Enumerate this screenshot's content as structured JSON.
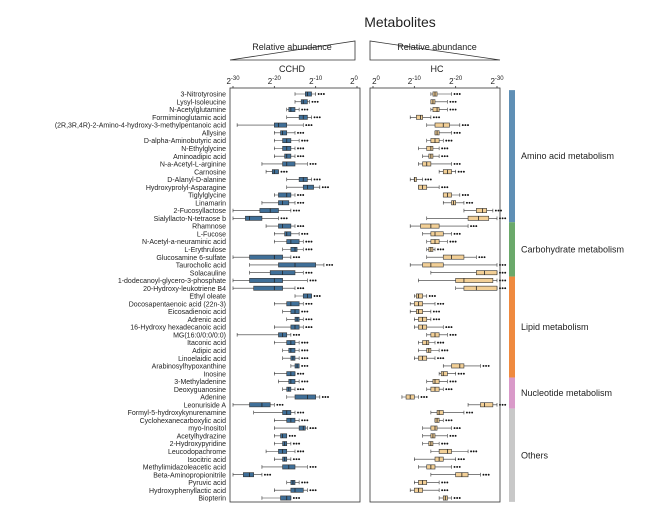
{
  "colors": {
    "cchd": "#3f6f98",
    "hc": "#f2cf96",
    "amino": "#5f8fb5",
    "carb": "#6ba96b",
    "lipid": "#ef8a3f",
    "nucleotide": "#d99ac9",
    "others": "#c8c8c8"
  },
  "chart_data": {
    "type": "boxplot",
    "title": "Metabolites",
    "x_scale": "log2, reversed (2^0 at inner edge, 2^-30 at outer edge)",
    "tick_labels": {
      "left": [
        "2-30",
        "2-20",
        "2-10",
        "2^0"
      ],
      "right": [
        "2^0",
        "2-10",
        "2-20",
        "2-30"
      ]
    },
    "panels": [
      {
        "name": "CCHD",
        "header": "Relative abundance",
        "direction": "reversed"
      },
      {
        "name": "HC",
        "header": "Relative abundance",
        "direction": "normal"
      }
    ],
    "groups": [
      {
        "name": "Amino acid metabolism",
        "start": 0,
        "end": 16
      },
      {
        "name": "Carbohydrate metabolism",
        "start": 17,
        "end": 23
      },
      {
        "name": "Lipid metabolism",
        "start": 24,
        "end": 36
      },
      {
        "name": "Nucleotide metabolism",
        "start": 37,
        "end": 40
      },
      {
        "name": "Others",
        "start": 41,
        "end": 52
      }
    ],
    "metabolites": [
      {
        "name": "3-Nitrotyrosine",
        "cchd": [
          -15,
          -12.5,
          -12,
          -11,
          -10
        ],
        "hc": [
          -14,
          -15.5,
          -15,
          -14.5,
          -19
        ]
      },
      {
        "name": "Lysyl-Isoleucine",
        "cchd": [
          -15,
          -13.5,
          -13,
          -12,
          -11.5
        ],
        "hc": [
          -14,
          -15,
          -14.5,
          -14,
          -18
        ]
      },
      {
        "name": "N-Acetylglutamine",
        "cchd": [
          -17,
          -16.5,
          -16,
          -15,
          -14
        ],
        "hc": [
          -14,
          -16,
          -15.5,
          -14.5,
          -18
        ]
      },
      {
        "name": "Formiminoglutamic acid",
        "cchd": [
          -17,
          -14,
          -13,
          -12,
          -11
        ],
        "hc": [
          -9,
          -12,
          -11.5,
          -10.5,
          -14
        ]
      },
      {
        "name": "(2R,3R,4R)-2-Amino-4-hydroxy-3-methylpentanoic acid",
        "cchd": [
          -29,
          -20,
          -19,
          -17,
          -13
        ],
        "hc": [
          -13,
          -18.5,
          -17,
          -15,
          -21
        ]
      },
      {
        "name": "Allysine",
        "cchd": [
          -20,
          -18.5,
          -18,
          -17,
          -15
        ],
        "hc": [
          -15,
          -16,
          -15.5,
          -15,
          -19
        ]
      },
      {
        "name": "D-alpha-Aminobutyric acid",
        "cchd": [
          -20,
          -18,
          -17,
          -16,
          -14
        ],
        "hc": [
          -13,
          -16,
          -15,
          -14,
          -17
        ]
      },
      {
        "name": "N-Ethylglycine",
        "cchd": [
          -20,
          -18,
          -17,
          -16,
          -15
        ],
        "hc": [
          -11,
          -14.5,
          -14,
          -13,
          -16
        ]
      },
      {
        "name": "Aminoadipic acid",
        "cchd": [
          -20,
          -17.5,
          -17,
          -16,
          -15
        ],
        "hc": [
          -12,
          -14.5,
          -14,
          -13.5,
          -16
        ]
      },
      {
        "name": "N-a-Acetyl-L-arginine",
        "cchd": [
          -23,
          -18,
          -17,
          -15,
          -12
        ],
        "hc": [
          -11,
          -14,
          -13,
          -12,
          -19
        ]
      },
      {
        "name": "Carnosine",
        "cchd": [
          -22,
          -20.5,
          -20,
          -19,
          -19
        ],
        "hc": [
          -16,
          -19,
          -18,
          -17,
          -20
        ]
      },
      {
        "name": "D-Alanyl-D-alanine",
        "cchd": [
          -17,
          -14,
          -13,
          -12,
          -11
        ],
        "hc": [
          -9,
          -10.5,
          -10,
          -10,
          -12
        ]
      },
      {
        "name": "Hydroxyprolyl-Asparagine",
        "cchd": [
          -17,
          -13,
          -12,
          -10.5,
          -9
        ],
        "hc": [
          -11,
          -13,
          -12,
          -11,
          -16
        ]
      },
      {
        "name": "Tiglylglycine",
        "cchd": [
          -20,
          -19,
          -17,
          -16,
          -15
        ],
        "hc": [
          -17,
          -19,
          -18,
          -17,
          -21
        ]
      },
      {
        "name": "Linamarin",
        "cchd": [
          -23,
          -19,
          -18,
          -16.5,
          -15
        ],
        "hc": [
          -17,
          -20,
          -19.5,
          -19,
          -22
        ]
      },
      {
        "name": "2-Fucosyllactose",
        "cchd": [
          -30,
          -23.5,
          -21,
          -19,
          -16
        ],
        "hc": [
          -22,
          -27.5,
          -26.5,
          -25,
          -29
        ]
      },
      {
        "name": "Sialyllacto-N-tetraose b",
        "cchd": [
          -30,
          -27,
          -26,
          -23,
          -19
        ],
        "hc": [
          -13,
          -28,
          -25.5,
          -23,
          -30
        ]
      },
      {
        "name": "Rhamnose",
        "cchd": [
          -22,
          -19,
          -18,
          -16,
          -15
        ],
        "hc": [
          -9,
          -16,
          -14,
          -11.5,
          -23
        ]
      },
      {
        "name": "L-Fucose",
        "cchd": [
          -20,
          -17.5,
          -17,
          -16,
          -14
        ],
        "hc": [
          -12,
          -17,
          -15,
          -14,
          -19
        ]
      },
      {
        "name": "N-Acetyl-a-neuraminic acid",
        "cchd": [
          -20,
          -17,
          -16,
          -14,
          -13
        ],
        "hc": [
          -13,
          -16,
          -15,
          -14,
          -18
        ]
      },
      {
        "name": "L-Erythrulose",
        "cchd": [
          -18,
          -16,
          -15,
          -14.5,
          -13
        ],
        "hc": [
          -13,
          -14.5,
          -14,
          -13.5,
          -15
        ]
      },
      {
        "name": "Glucosamine 6-sulfate",
        "cchd": [
          -30,
          -26,
          -20,
          -18,
          -16
        ],
        "hc": [
          -13,
          -22,
          -19,
          -17,
          -25
        ]
      },
      {
        "name": "Taurocholic acid",
        "cchd": [
          -26,
          -19,
          -15,
          -10,
          -8
        ],
        "hc": [
          -9,
          -17,
          -14,
          -12,
          -30
        ]
      },
      {
        "name": "Solacauline",
        "cchd": [
          -26,
          -21,
          -18,
          -15,
          -13
        ],
        "hc": [
          -14,
          -30,
          -27,
          -25,
          -30
        ]
      },
      {
        "name": "1-dodecanoyl-glycero-3-phosphate",
        "cchd": [
          -30,
          -26,
          -20,
          -18,
          -12
        ],
        "hc": [
          -11,
          -29,
          -22,
          -20,
          -30
        ]
      },
      {
        "name": "20-Hydroxy-leukotriene B4",
        "cchd": [
          -30,
          -25,
          -20,
          -18,
          -15
        ],
        "hc": [
          -20,
          -30,
          -25,
          -22,
          -30
        ]
      },
      {
        "name": "Ethyl oleate",
        "cchd": [
          -15,
          -13,
          -12,
          -11,
          -11
        ],
        "hc": [
          -10,
          -12,
          -11,
          -10.5,
          -13
        ]
      },
      {
        "name": "Docosapentaenoic acid (22n-3)",
        "cchd": [
          -20,
          -17,
          -16,
          -14,
          -13
        ],
        "hc": [
          -9,
          -12,
          -11,
          -10,
          -15
        ]
      },
      {
        "name": "Eicosadienoic acid",
        "cchd": [
          -18,
          -16,
          -15,
          -14,
          -14
        ],
        "hc": [
          -9,
          -12,
          -11,
          -10.5,
          -14
        ]
      },
      {
        "name": "Adrenic acid",
        "cchd": [
          -17,
          -15,
          -14.5,
          -14,
          -13
        ],
        "hc": [
          -10,
          -13,
          -12,
          -11,
          -14
        ]
      },
      {
        "name": "16-Hydroxy hexadecanoic acid",
        "cchd": [
          -20,
          -16,
          -15,
          -14,
          -13
        ],
        "hc": [
          -10,
          -13,
          -12,
          -11,
          -17
        ]
      },
      {
        "name": "MG(16:0/0:0/0:0)",
        "cchd": [
          -29,
          -19,
          -18,
          -17,
          -16
        ],
        "hc": [
          -13,
          -16,
          -15,
          -14,
          -18
        ]
      },
      {
        "name": "Itaconic acid",
        "cchd": [
          -20,
          -17,
          -16,
          -15,
          -14
        ],
        "hc": [
          -11,
          -13.5,
          -13,
          -12,
          -15
        ]
      },
      {
        "name": "Adipic acid",
        "cchd": [
          -18,
          -16.5,
          -16,
          -15,
          -14
        ],
        "hc": [
          -11,
          -14,
          -13.5,
          -13,
          -16
        ]
      },
      {
        "name": "Linoelaidic acid",
        "cchd": [
          -18,
          -16,
          -15.5,
          -15,
          -14
        ],
        "hc": [
          -10,
          -13,
          -12,
          -11,
          -15
        ]
      },
      {
        "name": "Arabinosylhypoxanthine",
        "cchd": [
          -16,
          -15,
          -14.5,
          -14,
          -14
        ],
        "hc": [
          -17,
          -22,
          -21,
          -19,
          -26
        ]
      },
      {
        "name": "Inosine",
        "cchd": [
          -20,
          -17,
          -16,
          -15,
          -15
        ],
        "hc": [
          -16,
          -18,
          -17,
          -16.5,
          -20
        ]
      },
      {
        "name": "3-Methyladenine",
        "cchd": [
          -19,
          -16.5,
          -16,
          -15,
          -14
        ],
        "hc": [
          -13,
          -16,
          -15,
          -14.5,
          -18
        ]
      },
      {
        "name": "Deoxyguanosine",
        "cchd": [
          -18,
          -17,
          -16.5,
          -16,
          -15
        ],
        "hc": [
          -13,
          -16,
          -15,
          -14,
          -17
        ]
      },
      {
        "name": "Adenine",
        "cchd": [
          -17,
          -15,
          -12,
          -10,
          -9
        ],
        "hc": [
          -7,
          -10,
          -9,
          -8,
          -11
        ]
      },
      {
        "name": "Leonuriside A",
        "cchd": [
          -30,
          -26,
          -23,
          -21,
          -20
        ],
        "hc": [
          -23,
          -29,
          -27,
          -26,
          -30
        ]
      },
      {
        "name": "Formyl-5-hydroxykynurenamine",
        "cchd": [
          -25,
          -18,
          -17,
          -16,
          -15
        ],
        "hc": [
          -14,
          -17,
          -16,
          -15.5,
          -22
        ]
      },
      {
        "name": "Cyclohexanecarboxylic acid",
        "cchd": [
          -20,
          -17,
          -16,
          -15,
          -14
        ],
        "hc": [
          -15,
          -16,
          -15.5,
          -15,
          -17
        ]
      },
      {
        "name": "myo-Inositol",
        "cchd": [
          -20,
          -14,
          -13,
          -12.5,
          -12
        ],
        "hc": [
          -12,
          -15.5,
          -15,
          -14,
          -19
        ]
      },
      {
        "name": "Acetylhydrazine",
        "cchd": [
          -20,
          -18.5,
          -18,
          -17,
          -17
        ],
        "hc": [
          -12,
          -15,
          -14.5,
          -14,
          -18
        ]
      },
      {
        "name": "2-Hydroxypyridine",
        "cchd": [
          -20,
          -18,
          -17.5,
          -17,
          -16
        ],
        "hc": [
          -12,
          -14.5,
          -14,
          -13.5,
          -16
        ]
      },
      {
        "name": "Leucodopachrome",
        "cchd": [
          -22,
          -19,
          -18,
          -17,
          -15
        ],
        "hc": [
          -14,
          -19,
          -18,
          -16,
          -23
        ]
      },
      {
        "name": "Isocitric acid",
        "cchd": [
          -20,
          -18,
          -17.5,
          -17,
          -16
        ],
        "hc": [
          -10,
          -17,
          -16,
          -15,
          -20
        ]
      },
      {
        "name": "Methylimidazoleacetic acid",
        "cchd": [
          -23,
          -18,
          -16.5,
          -15,
          -12
        ],
        "hc": [
          -11,
          -15,
          -14,
          -13,
          -19
        ]
      },
      {
        "name": "Beta-Aminopropionitrile",
        "cchd": [
          -30,
          -27.5,
          -26,
          -25,
          -23
        ],
        "hc": [
          -14,
          -23,
          -21.5,
          -20,
          -26
        ]
      },
      {
        "name": "Pyruvic acid",
        "cchd": [
          -17,
          -16,
          -15.5,
          -15,
          -14
        ],
        "hc": [
          -10,
          -13,
          -12,
          -11,
          -16
        ]
      },
      {
        "name": "Hydroxyphenyllactic acid",
        "cchd": [
          -20,
          -16,
          -15,
          -13,
          -12
        ],
        "hc": [
          -9,
          -12,
          -11,
          -10,
          -16
        ]
      },
      {
        "name": "Biopterin",
        "cchd": [
          -23,
          -18.5,
          -17,
          -16,
          -16
        ],
        "hc": [
          -16,
          -18,
          -17.5,
          -17,
          -19
        ]
      }
    ]
  }
}
